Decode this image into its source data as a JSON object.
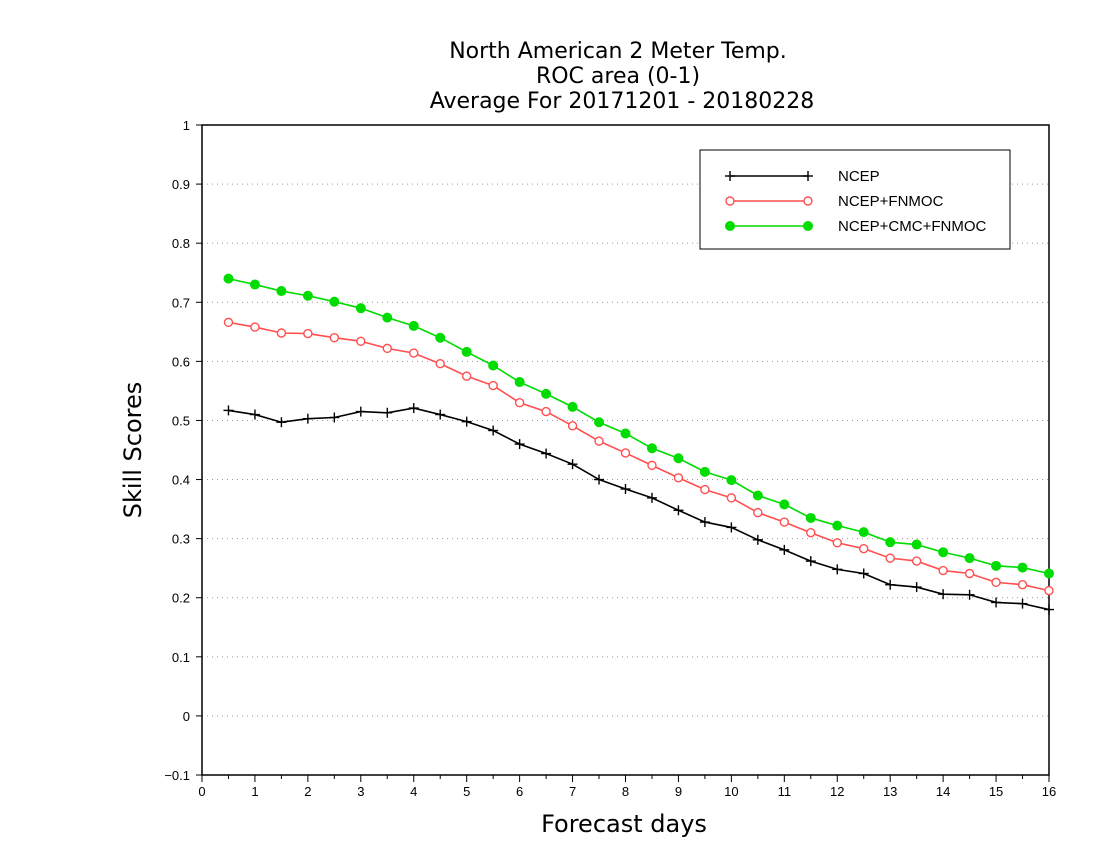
{
  "chart_data": {
    "type": "line",
    "title_lines": [
      "North American 2 Meter Temp.",
      "ROC area (0-1)",
      "Average For 20171201 - 20180228"
    ],
    "xlabel": "Forecast days",
    "ylabel": "Skill Scores",
    "xlim": [
      0,
      16
    ],
    "ylim": [
      -0.1,
      1
    ],
    "x_ticks": [
      "0",
      "1",
      "2",
      "3",
      "4",
      "5",
      "6",
      "7",
      "8",
      "9",
      "10",
      "11",
      "12",
      "13",
      "14",
      "15",
      "16"
    ],
    "y_ticks": [
      "−0.1",
      "0",
      "0.1",
      "0.2",
      "0.3",
      "0.4",
      "0.5",
      "0.6",
      "0.7",
      "0.8",
      "0.9",
      "1"
    ],
    "y_tick_values": [
      -0.1,
      0,
      0.1,
      0.2,
      0.3,
      0.4,
      0.5,
      0.6,
      0.7,
      0.8,
      0.9,
      1
    ],
    "grid": "horizontal-dotted",
    "legend_placement": "top-right",
    "x": [
      0.5,
      1.0,
      1.5,
      2.0,
      2.5,
      3.0,
      3.5,
      4.0,
      4.5,
      5.0,
      5.5,
      6.0,
      6.5,
      7.0,
      7.5,
      8.0,
      8.5,
      9.0,
      9.5,
      10.0,
      10.5,
      11.0,
      11.5,
      12.0,
      12.5,
      13.0,
      13.5,
      14.0,
      14.5,
      15.0,
      15.5,
      16.0
    ],
    "series": [
      {
        "name": "NCEP",
        "color": "#000000",
        "marker": "plus",
        "values": [
          0.517,
          0.51,
          0.497,
          0.503,
          0.505,
          0.515,
          0.513,
          0.521,
          0.51,
          0.498,
          0.483,
          0.46,
          0.444,
          0.426,
          0.4,
          0.384,
          0.369,
          0.348,
          0.328,
          0.319,
          0.298,
          0.281,
          0.262,
          0.248,
          0.241,
          0.222,
          0.218,
          0.206,
          0.205,
          0.192,
          0.19,
          0.18
        ]
      },
      {
        "name": "NCEP+FNMOC",
        "color": "#ff4f4f",
        "marker": "open-circle",
        "values": [
          0.666,
          0.658,
          0.648,
          0.647,
          0.64,
          0.634,
          0.622,
          0.614,
          0.596,
          0.575,
          0.559,
          0.53,
          0.515,
          0.491,
          0.465,
          0.445,
          0.424,
          0.403,
          0.383,
          0.369,
          0.344,
          0.328,
          0.31,
          0.293,
          0.283,
          0.267,
          0.262,
          0.246,
          0.241,
          0.226,
          0.222,
          0.212
        ]
      },
      {
        "name": "NCEP+CMC+FNMOC",
        "color": "#00dc00",
        "marker": "filled-circle",
        "values": [
          0.74,
          0.73,
          0.719,
          0.711,
          0.701,
          0.69,
          0.674,
          0.66,
          0.64,
          0.616,
          0.593,
          0.565,
          0.545,
          0.523,
          0.497,
          0.478,
          0.453,
          0.436,
          0.413,
          0.399,
          0.373,
          0.358,
          0.335,
          0.322,
          0.311,
          0.294,
          0.29,
          0.277,
          0.267,
          0.254,
          0.251,
          0.241
        ]
      }
    ]
  }
}
